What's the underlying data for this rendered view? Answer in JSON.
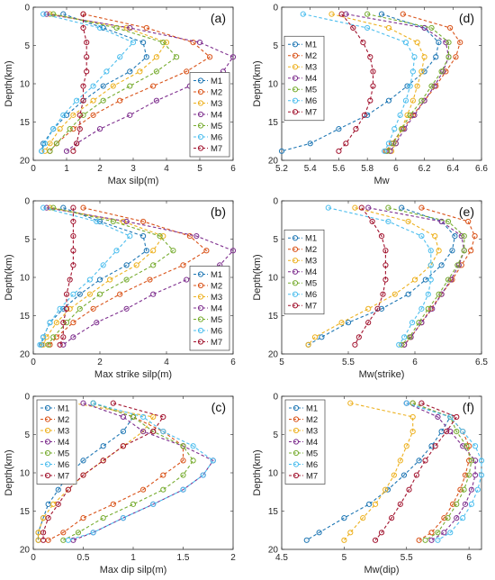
{
  "figure": {
    "series_names": [
      "M1",
      "M2",
      "M3",
      "M4",
      "M5",
      "M6",
      "M7"
    ],
    "series_colors": [
      "#1f77b4",
      "#d95319",
      "#edb120",
      "#7e2f8e",
      "#77ac30",
      "#4dbeee",
      "#a2142f"
    ]
  },
  "chart_data": [
    {
      "id": "a",
      "panel_label": "(a)",
      "type": "line",
      "xlabel": "Max silp(m)",
      "ylabel": "Depth(km)",
      "xlim": [
        0,
        6
      ],
      "ylim": [
        0,
        20
      ],
      "y_reversed": true,
      "xticks": [
        "0",
        "1",
        "2",
        "3",
        "4",
        "5",
        "6"
      ],
      "yticks": [
        "0",
        "5",
        "10",
        "15",
        "20"
      ],
      "legend_position": "lower-right",
      "y": [
        0.9,
        2.7,
        4.6,
        6.5,
        8.4,
        10.3,
        12.2,
        14.1,
        15.9,
        17.8,
        18.8
      ],
      "series": [
        {
          "name": "M1",
          "values": [
            0.9,
            2.1,
            3.3,
            3.4,
            2.9,
            2.1,
            1.5,
            1.0,
            0.6,
            0.3,
            0.25
          ]
        },
        {
          "name": "M2",
          "values": [
            1.5,
            3.4,
            4.8,
            5.3,
            4.6,
            3.6,
            2.6,
            1.8,
            1.2,
            0.7,
            0.5
          ]
        },
        {
          "name": "M3",
          "values": [
            0.5,
            2.8,
            4.0,
            3.7,
            3.2,
            2.4,
            1.8,
            1.2,
            0.8,
            0.5,
            0.35
          ]
        },
        {
          "name": "M4",
          "values": [
            0.4,
            2.9,
            5.0,
            6.0,
            5.7,
            4.7,
            3.7,
            2.9,
            2.0,
            1.3,
            1.0
          ]
        },
        {
          "name": "M5",
          "values": [
            0.6,
            2.5,
            3.9,
            4.3,
            3.7,
            2.9,
            2.1,
            1.5,
            1.1,
            0.7,
            0.5
          ]
        },
        {
          "name": "M6",
          "values": [
            0.3,
            2.0,
            3.0,
            2.6,
            2.2,
            1.8,
            1.3,
            0.9,
            0.6,
            0.35,
            0.25
          ]
        },
        {
          "name": "M7",
          "values": [
            1.5,
            1.5,
            1.6,
            1.6,
            1.6,
            1.5,
            1.5,
            1.4,
            1.4,
            1.3,
            1.2
          ]
        }
      ]
    },
    {
      "id": "b",
      "panel_label": "(b)",
      "type": "line",
      "xlabel": "Max strike silp(m)",
      "ylabel": "Depth(km)",
      "xlim": [
        0,
        6
      ],
      "ylim": [
        0,
        20
      ],
      "y_reversed": true,
      "xticks": [
        "0",
        "2",
        "4",
        "6"
      ],
      "yticks": [
        "0",
        "5",
        "10",
        "15",
        "20"
      ],
      "legend_position": "lower-right",
      "y": [
        0.9,
        2.7,
        4.6,
        6.5,
        8.4,
        10.3,
        12.2,
        14.1,
        15.9,
        17.8,
        18.8
      ],
      "series": [
        {
          "name": "M1",
          "values": [
            0.9,
            2.0,
            3.3,
            3.4,
            2.8,
            2.0,
            1.4,
            0.9,
            0.5,
            0.3,
            0.25
          ]
        },
        {
          "name": "M2",
          "values": [
            1.5,
            3.3,
            4.7,
            5.2,
            4.5,
            3.5,
            2.6,
            1.8,
            1.2,
            0.7,
            0.5
          ]
        },
        {
          "name": "M3",
          "values": [
            0.5,
            2.7,
            3.9,
            3.6,
            3.1,
            2.3,
            1.7,
            1.1,
            0.7,
            0.4,
            0.3
          ]
        },
        {
          "name": "M4",
          "values": [
            0.4,
            2.8,
            4.9,
            6.0,
            5.6,
            4.6,
            3.6,
            2.8,
            1.9,
            1.2,
            0.9
          ]
        },
        {
          "name": "M5",
          "values": [
            0.6,
            2.4,
            3.8,
            4.2,
            3.6,
            2.8,
            2.0,
            1.4,
            1.0,
            0.6,
            0.45
          ]
        },
        {
          "name": "M6",
          "values": [
            0.3,
            1.9,
            2.9,
            2.5,
            2.1,
            1.7,
            1.2,
            0.8,
            0.5,
            0.3,
            0.2
          ]
        },
        {
          "name": "M7",
          "values": [
            1.2,
            1.2,
            1.2,
            1.2,
            1.2,
            1.1,
            1.0,
            1.0,
            0.9,
            0.9,
            0.8
          ]
        }
      ]
    },
    {
      "id": "c",
      "panel_label": "(c)",
      "type": "line",
      "xlabel": "Max dip silp(m)",
      "ylabel": "Depth(km)",
      "xlim": [
        0,
        2
      ],
      "ylim": [
        0,
        20
      ],
      "y_reversed": true,
      "xticks": [
        "0",
        "0.5",
        "1",
        "1.5",
        "2"
      ],
      "yticks": [
        "0",
        "5",
        "10",
        "15",
        "20"
      ],
      "legend_position": "upper-left",
      "y": [
        0.9,
        2.7,
        4.6,
        6.5,
        8.4,
        10.3,
        12.2,
        14.1,
        15.9,
        17.8,
        18.8
      ],
      "series": [
        {
          "name": "M1",
          "values": [
            0.6,
            1.0,
            0.9,
            0.7,
            0.5,
            0.35,
            0.25,
            0.15,
            0.1,
            0.05,
            0.05
          ]
        },
        {
          "name": "M2",
          "values": [
            0.6,
            1.0,
            1.3,
            1.5,
            1.5,
            1.3,
            1.1,
            0.8,
            0.5,
            0.3,
            0.15
          ]
        },
        {
          "name": "M3",
          "values": [
            0.4,
            1.2,
            1.1,
            0.9,
            0.7,
            0.5,
            0.35,
            0.2,
            0.1,
            0.05,
            0.05
          ]
        },
        {
          "name": "M4",
          "values": [
            0.5,
            0.9,
            1.1,
            1.5,
            1.8,
            1.7,
            1.5,
            1.2,
            0.9,
            0.6,
            0.4
          ]
        },
        {
          "name": "M5",
          "values": [
            0.6,
            1.0,
            1.2,
            1.5,
            1.6,
            1.5,
            1.3,
            1.0,
            0.7,
            0.45,
            0.3
          ]
        },
        {
          "name": "M6",
          "values": [
            0.6,
            1.1,
            1.3,
            1.6,
            1.8,
            1.7,
            1.5,
            1.2,
            0.9,
            0.6,
            0.35
          ]
        },
        {
          "name": "M7",
          "values": [
            0.8,
            1.3,
            1.2,
            0.9,
            0.7,
            0.5,
            0.35,
            0.25,
            0.15,
            0.1,
            0.1
          ]
        }
      ]
    },
    {
      "id": "d",
      "panel_label": "(d)",
      "type": "line",
      "xlabel": "Mw",
      "ylabel": "Depth(km)",
      "xlim": [
        5.2,
        6.6
      ],
      "ylim": [
        0,
        20
      ],
      "y_reversed": true,
      "xticks": [
        "5.2",
        "5.4",
        "5.6",
        "5.8",
        "6",
        "6.2",
        "6.4",
        "6.6"
      ],
      "yticks": [
        "0",
        "5",
        "10",
        "15",
        "20"
      ],
      "legend_position": "center-left",
      "y": [
        0.9,
        2.7,
        4.6,
        6.5,
        8.4,
        10.3,
        12.2,
        14.1,
        15.9,
        17.8,
        18.8
      ],
      "series": [
        {
          "name": "M1",
          "values": [
            5.9,
            6.2,
            6.3,
            6.28,
            6.2,
            6.08,
            5.95,
            5.8,
            5.6,
            5.4,
            5.2
          ]
        },
        {
          "name": "M2",
          "values": [
            6.05,
            6.38,
            6.45,
            6.42,
            6.35,
            6.28,
            6.2,
            6.12,
            6.05,
            5.97,
            5.93
          ]
        },
        {
          "name": "M3",
          "values": [
            5.55,
            5.95,
            6.15,
            6.2,
            6.18,
            6.15,
            6.12,
            6.08,
            6.04,
            6.0,
            5.97
          ]
        },
        {
          "name": "M4",
          "values": [
            5.65,
            6.2,
            6.35,
            6.37,
            6.33,
            6.27,
            6.2,
            6.13,
            6.06,
            6.0,
            5.96
          ]
        },
        {
          "name": "M5",
          "values": [
            5.8,
            6.25,
            6.37,
            6.37,
            6.32,
            6.25,
            6.18,
            6.1,
            6.04,
            5.98,
            5.94
          ]
        },
        {
          "name": "M6",
          "values": [
            5.35,
            5.8,
            6.07,
            6.13,
            6.12,
            6.1,
            6.07,
            6.03,
            5.99,
            5.95,
            5.92
          ]
        },
        {
          "name": "M7",
          "values": [
            5.62,
            5.7,
            5.77,
            5.82,
            5.84,
            5.84,
            5.82,
            5.78,
            5.72,
            5.65,
            5.6
          ]
        }
      ]
    },
    {
      "id": "e",
      "panel_label": "(e)",
      "type": "line",
      "xlabel": "Mw(strike)",
      "ylabel": "Depth(km)",
      "xlim": [
        5,
        6.5
      ],
      "ylim": [
        0,
        20
      ],
      "y_reversed": true,
      "xticks": [
        "5",
        "5.5",
        "6",
        "6.5"
      ],
      "yticks": [
        "0",
        "5",
        "10",
        "15",
        "20"
      ],
      "legend_position": "center-left",
      "y": [
        0.9,
        2.7,
        4.6,
        6.5,
        8.4,
        10.3,
        12.2,
        14.1,
        15.9,
        17.8,
        18.8
      ],
      "series": [
        {
          "name": "M1",
          "values": [
            5.9,
            6.2,
            6.3,
            6.28,
            6.2,
            6.08,
            5.95,
            5.75,
            5.5,
            5.3,
            5.2
          ]
        },
        {
          "name": "M2",
          "values": [
            6.05,
            6.4,
            6.45,
            6.42,
            6.35,
            6.28,
            6.2,
            6.12,
            6.05,
            5.97,
            5.92
          ]
        },
        {
          "name": "M3",
          "values": [
            5.55,
            5.95,
            6.15,
            6.18,
            6.12,
            6.0,
            5.85,
            5.65,
            5.45,
            5.25,
            5.2
          ]
        },
        {
          "name": "M4",
          "values": [
            5.65,
            6.2,
            6.35,
            6.37,
            6.33,
            6.27,
            6.2,
            6.13,
            6.05,
            5.97,
            5.92
          ]
        },
        {
          "name": "M5",
          "values": [
            5.8,
            6.25,
            6.37,
            6.37,
            6.32,
            6.25,
            6.18,
            6.1,
            6.03,
            5.96,
            5.9
          ]
        },
        {
          "name": "M6",
          "values": [
            5.35,
            5.8,
            6.05,
            6.12,
            6.12,
            6.12,
            6.1,
            6.05,
            5.98,
            5.92,
            5.88
          ]
        },
        {
          "name": "M7",
          "values": [
            5.6,
            5.68,
            5.75,
            5.78,
            5.78,
            5.78,
            5.76,
            5.72,
            5.65,
            5.58,
            5.55
          ]
        }
      ]
    },
    {
      "id": "f",
      "panel_label": "(f)",
      "type": "line",
      "xlabel": "Mw(dip)",
      "ylabel": "Depth(km)",
      "xlim": [
        4.5,
        6.1
      ],
      "ylim": [
        0,
        20
      ],
      "y_reversed": true,
      "xticks": [
        "4.5",
        "5",
        "5.5",
        "6"
      ],
      "yticks": [
        "0",
        "5",
        "10",
        "15",
        "20"
      ],
      "legend_position": "upper-left",
      "y": [
        0.9,
        2.7,
        4.6,
        6.5,
        8.4,
        10.3,
        12.2,
        14.1,
        15.9,
        17.8,
        18.8
      ],
      "series": [
        {
          "name": "M1",
          "values": [
            5.5,
            5.85,
            5.78,
            5.7,
            5.6,
            5.48,
            5.35,
            5.2,
            5.0,
            4.8,
            4.7
          ]
        },
        {
          "name": "M2",
          "values": [
            5.55,
            5.85,
            5.95,
            6.0,
            6.0,
            5.97,
            5.93,
            5.87,
            5.8,
            5.7,
            5.6
          ]
        },
        {
          "name": "M3",
          "values": [
            5.05,
            5.55,
            5.55,
            5.5,
            5.45,
            5.4,
            5.33,
            5.25,
            5.15,
            5.05,
            5.0
          ]
        },
        {
          "name": "M4",
          "values": [
            5.5,
            5.75,
            5.85,
            5.95,
            6.05,
            6.05,
            6.02,
            5.97,
            5.9,
            5.8,
            5.7
          ]
        },
        {
          "name": "M5",
          "values": [
            5.55,
            5.85,
            5.9,
            5.98,
            6.02,
            6.0,
            5.96,
            5.9,
            5.83,
            5.75,
            5.65
          ]
        },
        {
          "name": "M6",
          "values": [
            5.5,
            5.85,
            5.95,
            6.05,
            6.1,
            6.1,
            6.07,
            6.02,
            5.95,
            5.85,
            5.75
          ]
        },
        {
          "name": "M7",
          "values": [
            5.62,
            5.9,
            5.82,
            5.73,
            5.65,
            5.58,
            5.52,
            5.45,
            5.38,
            5.3,
            5.25
          ]
        }
      ]
    }
  ]
}
